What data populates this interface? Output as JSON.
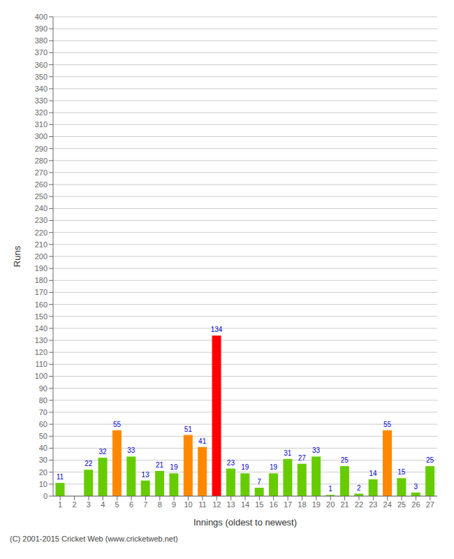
{
  "chart_data": {
    "type": "bar",
    "categories": [
      "1",
      "2",
      "3",
      "4",
      "5",
      "6",
      "7",
      "8",
      "9",
      "10",
      "11",
      "12",
      "13",
      "14",
      "15",
      "16",
      "17",
      "18",
      "19",
      "20",
      "21",
      "22",
      "23",
      "24",
      "25",
      "26",
      "27"
    ],
    "values": [
      11,
      0,
      22,
      32,
      55,
      33,
      13,
      21,
      19,
      51,
      41,
      134,
      23,
      19,
      7,
      19,
      31,
      27,
      33,
      1,
      25,
      2,
      14,
      55,
      15,
      3,
      25
    ],
    "colors": [
      "#66cc00",
      "#66cc00",
      "#66cc00",
      "#66cc00",
      "#ff8800",
      "#66cc00",
      "#66cc00",
      "#66cc00",
      "#66cc00",
      "#ff8800",
      "#ff8800",
      "#ff0000",
      "#66cc00",
      "#66cc00",
      "#66cc00",
      "#66cc00",
      "#66cc00",
      "#66cc00",
      "#66cc00",
      "#66cc00",
      "#66cc00",
      "#66cc00",
      "#66cc00",
      "#ff8800",
      "#66cc00",
      "#66cc00",
      "#66cc00"
    ],
    "xlabel": "Innings (oldest to newest)",
    "ylabel": "Runs",
    "ylim": [
      0,
      400
    ],
    "yticks": [
      0,
      10,
      20,
      30,
      40,
      50,
      60,
      70,
      80,
      90,
      100,
      110,
      120,
      130,
      140,
      150,
      160,
      170,
      180,
      190,
      200,
      210,
      220,
      230,
      240,
      250,
      260,
      270,
      280,
      290,
      300,
      310,
      320,
      330,
      340,
      350,
      360,
      370,
      380,
      390,
      400
    ],
    "grid": true,
    "data_labels": true,
    "footer": "(C) 2001-2015 Cricket Web (www.cricketweb.net)"
  }
}
